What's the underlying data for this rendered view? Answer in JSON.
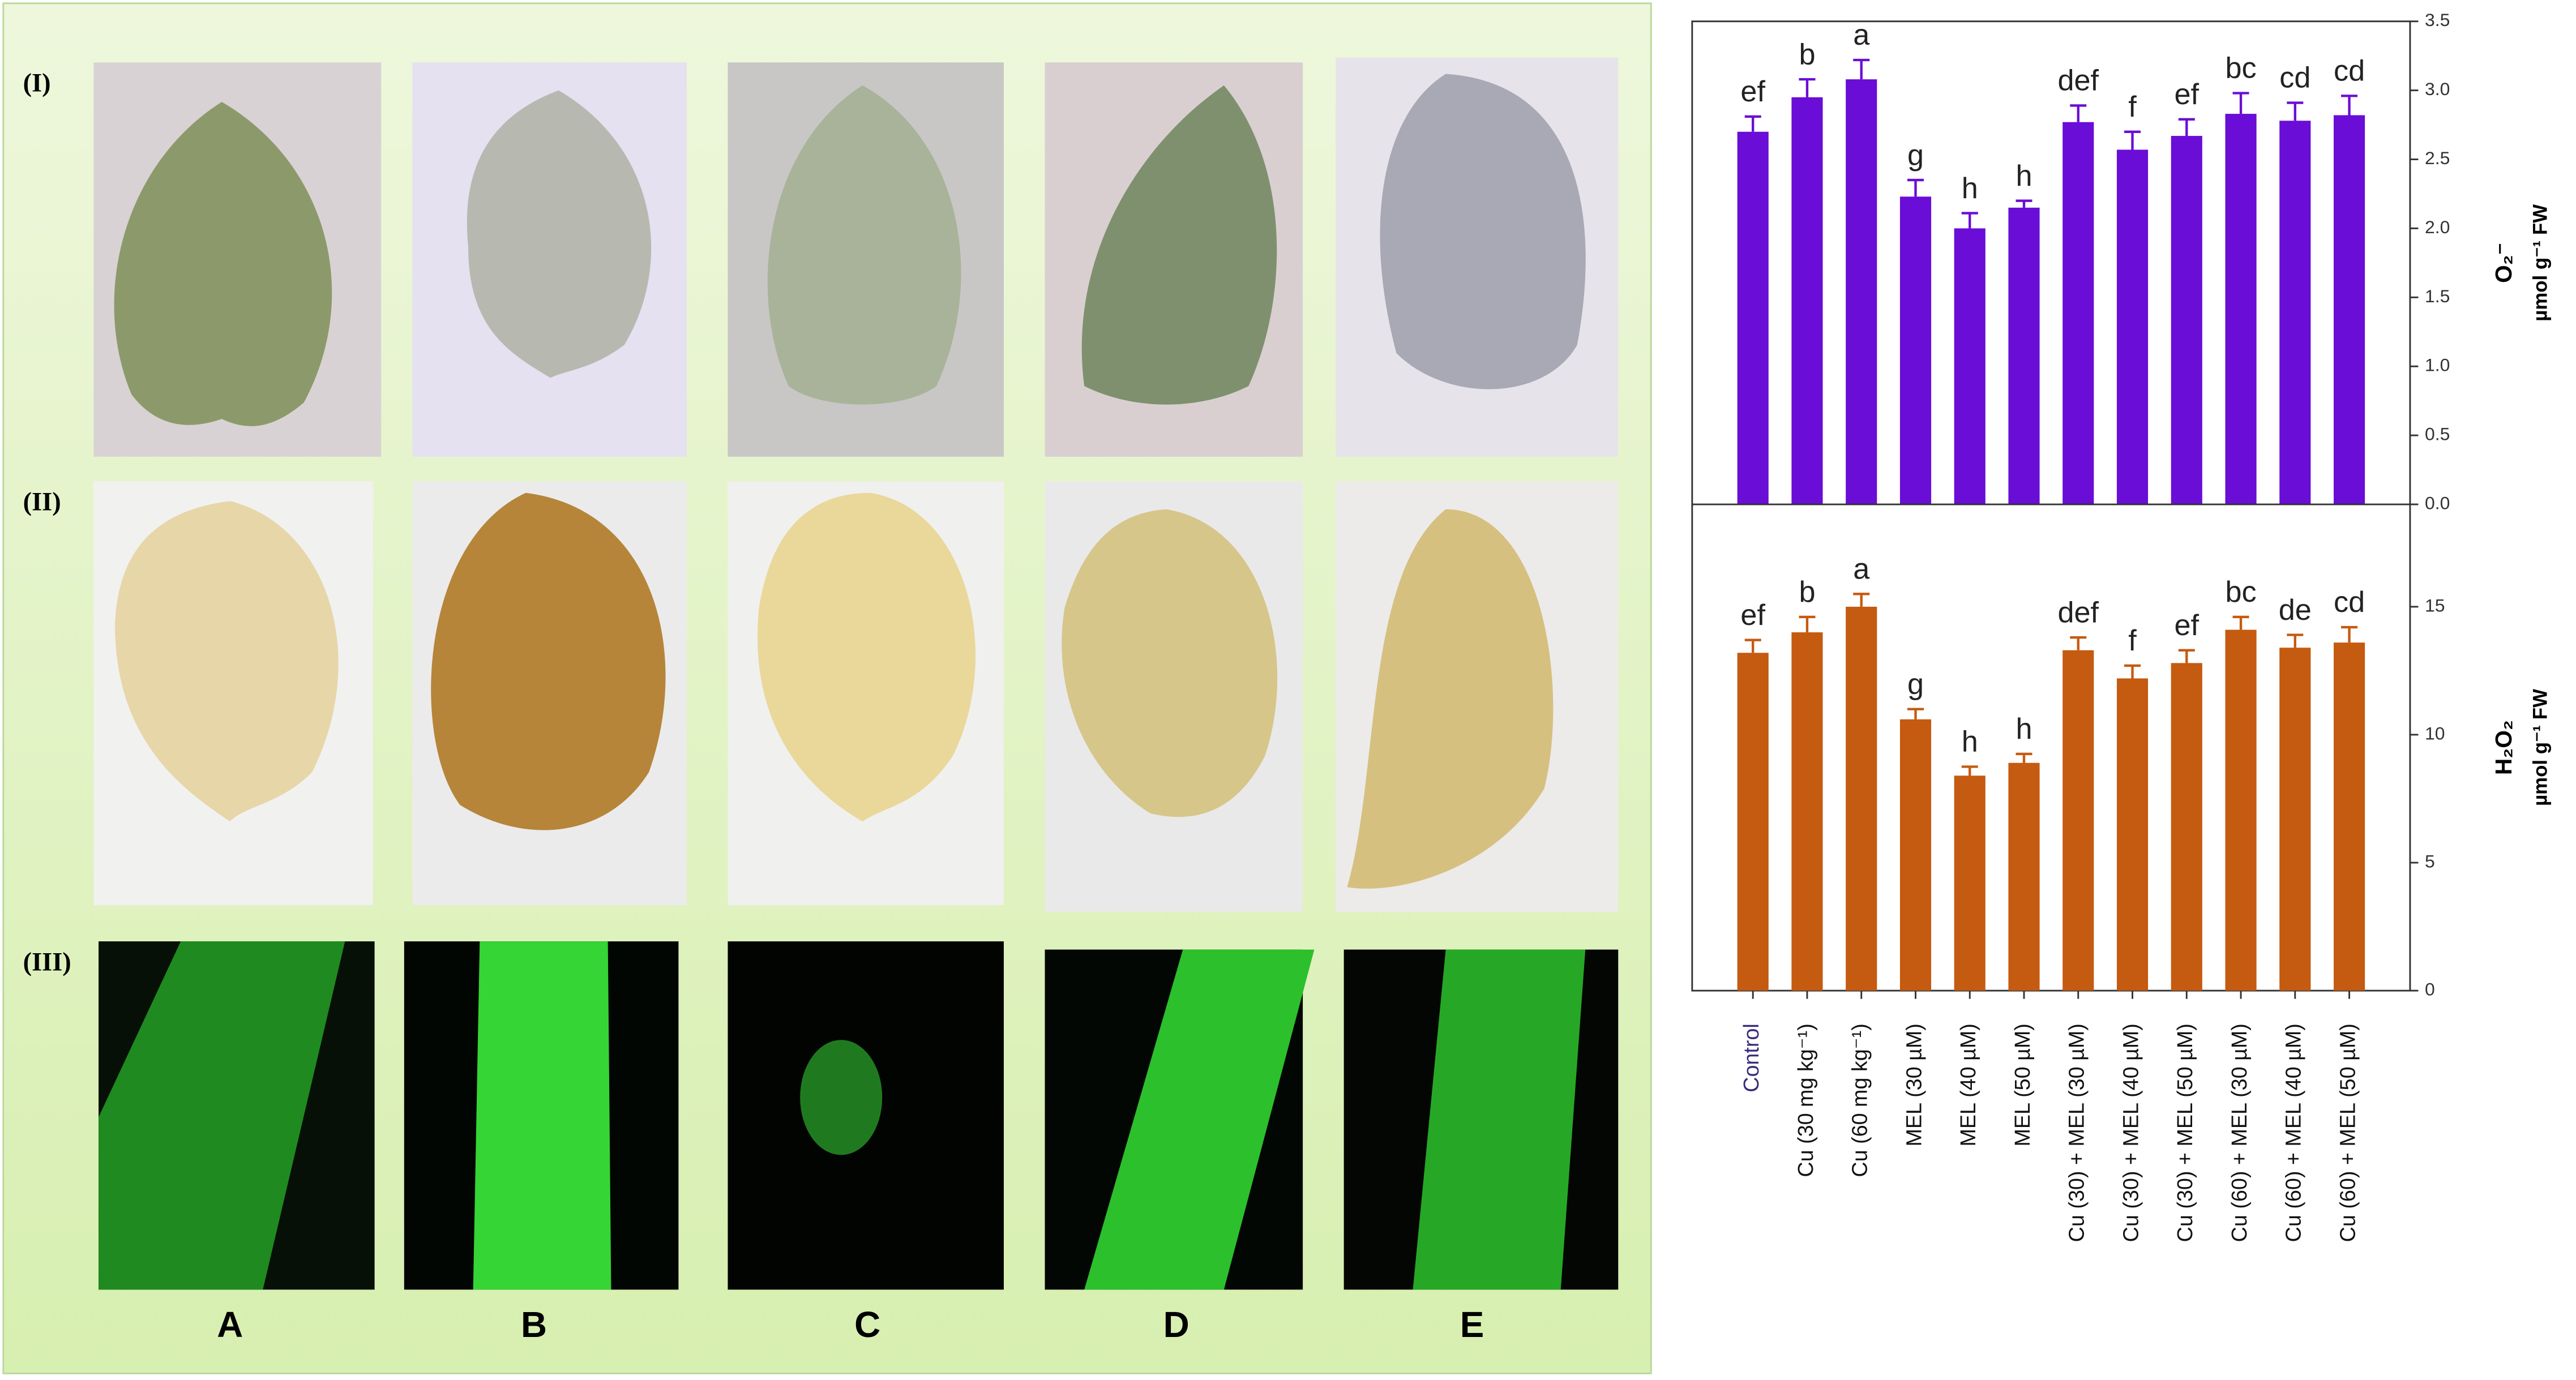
{
  "figure": {
    "row_labels": [
      "(I)",
      "(II)",
      "(III)"
    ],
    "column_labels": [
      "A",
      "B",
      "C",
      "D",
      "E"
    ]
  },
  "chart_data": [
    {
      "type": "bar",
      "y_label": [
        "O₂⁻",
        "µmol g⁻¹ FW"
      ],
      "color": "#6a0dd6",
      "values": [
        2.7,
        2.95,
        3.08,
        2.23,
        2.0,
        2.15,
        2.77,
        2.57,
        2.67,
        2.83,
        2.78,
        2.82
      ],
      "errors": [
        0.11,
        0.13,
        0.14,
        0.12,
        0.11,
        0.05,
        0.12,
        0.13,
        0.12,
        0.15,
        0.13,
        0.14
      ],
      "annotations": [
        "ef",
        "b",
        "a",
        "g",
        "h",
        "h",
        "def",
        "f",
        "ef",
        "bc",
        "cd",
        "cd"
      ],
      "ylim": [
        0,
        3.5
      ],
      "yticks": [
        {
          "value": 0,
          "label": "0.0"
        },
        0.5,
        {
          "value": 1,
          "label": "1.0"
        },
        1.5,
        {
          "value": 2,
          "label": "2.0"
        },
        2.5,
        {
          "value": 3,
          "label": "3.0"
        },
        3.5
      ]
    },
    {
      "type": "bar",
      "y_label": [
        "H₂O₂",
        "µmol g⁻¹ FW"
      ],
      "color": "#c55a11",
      "categories": [
        "Control",
        "Cu (30 mg kg⁻¹)",
        "Cu (60 mg kg⁻¹)",
        "MEL (30 µM)",
        "MEL (40 µM)",
        "MEL (50 µM)",
        "Cu (30) + MEL (30 µM)",
        "Cu (30) + MEL (40 µM)",
        "Cu (30) + MEL (50 µM)",
        "Cu (60) + MEL (30 µM)",
        "Cu (60) + MEL (40 µM)",
        "Cu (60) + MEL (50 µM)"
      ],
      "values": [
        13.2,
        14.0,
        15.0,
        10.6,
        8.4,
        8.9,
        13.3,
        12.2,
        12.8,
        14.1,
        13.4,
        13.6
      ],
      "errors": [
        0.5,
        0.6,
        0.5,
        0.4,
        0.35,
        0.35,
        0.5,
        0.5,
        0.5,
        0.5,
        0.5,
        0.6
      ],
      "annotations": [
        "ef",
        "b",
        "a",
        "g",
        "h",
        "h",
        "def",
        "f",
        "ef",
        "bc",
        "de",
        "cd"
      ],
      "ylim": [
        0,
        19
      ],
      "yticks": [
        0,
        5,
        10,
        15
      ]
    }
  ]
}
